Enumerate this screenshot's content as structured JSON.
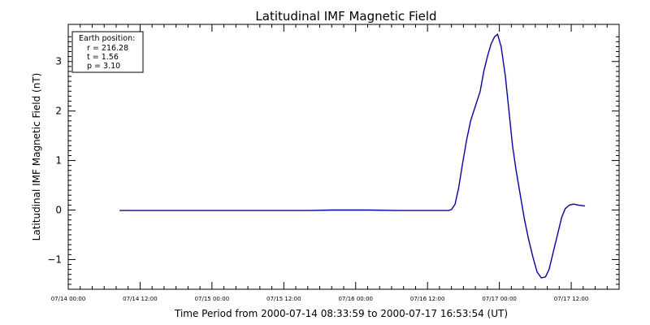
{
  "chart_data": {
    "type": "line",
    "title": "Latitudinal IMF Magnetic Field",
    "xlabel": "Time Period from 2000-07-14 08:33:59 to 2000-07-17 16:53:54 (UT)",
    "ylabel": "Latitudinal IMF Magnetic Field (nT)",
    "x_unit": "hours since 07/14 00:00",
    "xlim": [
      0,
      92
    ],
    "ylim": [
      -1.6,
      3.75
    ],
    "x_ticks": [
      {
        "value": 0,
        "label": "07/14 00:00"
      },
      {
        "value": 12,
        "label": "07/14 12:00"
      },
      {
        "value": 24,
        "label": "07/15 00:00"
      },
      {
        "value": 36,
        "label": "07/15 12:00"
      },
      {
        "value": 48,
        "label": "07/16 00:00"
      },
      {
        "value": 60,
        "label": "07/16 12:00"
      },
      {
        "value": 72,
        "label": "07/17 00:00"
      },
      {
        "value": 84,
        "label": "07/17 12:00"
      }
    ],
    "y_ticks": [
      {
        "value": -1,
        "label": "−1"
      },
      {
        "value": 0,
        "label": "0"
      },
      {
        "value": 1,
        "label": "1"
      },
      {
        "value": 2,
        "label": "2"
      },
      {
        "value": 3,
        "label": "3"
      }
    ],
    "legend": {
      "position": "top-left",
      "lines": [
        "Earth position:",
        "r = 216.28",
        "t = 1.56",
        "p = 3.10"
      ]
    },
    "series": [
      {
        "color": "#0000cc",
        "points": [
          [
            8.57,
            -0.01
          ],
          [
            20,
            -0.01
          ],
          [
            30,
            -0.01
          ],
          [
            40,
            -0.01
          ],
          [
            44,
            0.0
          ],
          [
            50,
            0.0
          ],
          [
            55,
            -0.01
          ],
          [
            60,
            -0.01
          ],
          [
            63.5,
            -0.01
          ],
          [
            64,
            0.01
          ],
          [
            64.6,
            0.12
          ],
          [
            65.2,
            0.45
          ],
          [
            65.8,
            0.9
          ],
          [
            66.5,
            1.4
          ],
          [
            67.2,
            1.8
          ],
          [
            68,
            2.1
          ],
          [
            68.8,
            2.4
          ],
          [
            69.4,
            2.8
          ],
          [
            70,
            3.1
          ],
          [
            70.6,
            3.35
          ],
          [
            71.2,
            3.5
          ],
          [
            71.7,
            3.55
          ],
          [
            72.3,
            3.3
          ],
          [
            73,
            2.7
          ],
          [
            73.6,
            2.0
          ],
          [
            74.2,
            1.3
          ],
          [
            74.8,
            0.8
          ],
          [
            75.5,
            0.3
          ],
          [
            76.2,
            -0.2
          ],
          [
            76.9,
            -0.6
          ],
          [
            77.6,
            -0.95
          ],
          [
            78.3,
            -1.25
          ],
          [
            79,
            -1.37
          ],
          [
            79.7,
            -1.35
          ],
          [
            80.3,
            -1.2
          ],
          [
            81,
            -0.85
          ],
          [
            81.7,
            -0.5
          ],
          [
            82.4,
            -0.15
          ],
          [
            83,
            0.03
          ],
          [
            83.7,
            0.1
          ],
          [
            84.4,
            0.12
          ],
          [
            85.2,
            0.1
          ],
          [
            86.3,
            0.08
          ]
        ]
      }
    ]
  }
}
